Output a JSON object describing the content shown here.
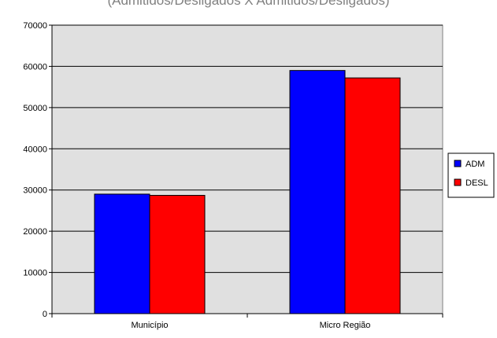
{
  "chart_data": {
    "type": "bar",
    "title": "(Admitidos/Desligados X Admitidos/Desligados)",
    "categories": [
      "Município",
      "Micro Região"
    ],
    "series": [
      {
        "name": "ADM",
        "values": [
          29000,
          59000
        ],
        "color": "#0000ff"
      },
      {
        "name": "DESL",
        "values": [
          28700,
          57200
        ],
        "color": "#ff0000"
      }
    ],
    "ylim": [
      0,
      70000
    ],
    "yticks": [
      0,
      10000,
      20000,
      30000,
      40000,
      50000,
      60000,
      70000
    ],
    "grid": true,
    "legend": "right",
    "plot_background": "#e0e0e0",
    "xlabel": "",
    "ylabel": ""
  }
}
